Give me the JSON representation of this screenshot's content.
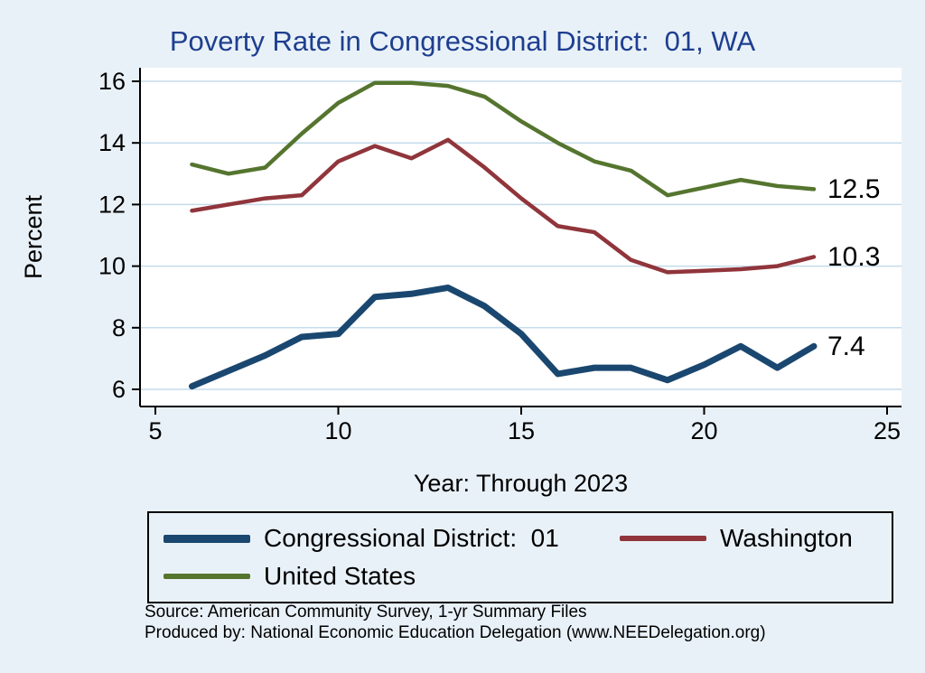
{
  "chart_data": {
    "type": "line",
    "title": "Poverty Rate in Congressional District:  01, WA",
    "xlabel": "Year: Through 2023",
    "ylabel": "Percent",
    "xlim": [
      5,
      25
    ],
    "ylim": [
      6,
      16
    ],
    "x_ticks": [
      5,
      10,
      15,
      20,
      25
    ],
    "y_ticks": [
      6,
      8,
      10,
      12,
      14,
      16
    ],
    "grid": "horizontal",
    "legend_position": "bottom",
    "x": [
      6,
      7,
      8,
      9,
      10,
      11,
      12,
      13,
      14,
      15,
      16,
      17,
      18,
      19,
      20,
      21,
      22,
      23
    ],
    "series": [
      {
        "name": "Congressional District:  01",
        "color": "#1a476f",
        "line_width": 7,
        "end_label": "7.4",
        "values": [
          6.1,
          6.6,
          7.1,
          7.7,
          7.8,
          9.0,
          9.1,
          9.3,
          8.7,
          7.8,
          6.5,
          6.7,
          6.7,
          6.3,
          6.8,
          7.4,
          6.7,
          7.4
        ]
      },
      {
        "name": "Washington",
        "color": "#90353b",
        "line_width": 4.5,
        "end_label": "10.3",
        "values": [
          11.8,
          12.0,
          12.2,
          12.3,
          13.4,
          13.9,
          13.5,
          14.1,
          13.2,
          12.2,
          11.3,
          11.1,
          10.2,
          9.8,
          9.85,
          9.9,
          10.0,
          10.3
        ]
      },
      {
        "name": "United States",
        "color": "#55752f",
        "line_width": 4.5,
        "end_label": "12.5",
        "values": [
          13.3,
          13.0,
          13.2,
          14.3,
          15.3,
          15.95,
          15.95,
          15.85,
          15.5,
          14.7,
          14.0,
          13.4,
          13.1,
          12.3,
          12.55,
          12.8,
          12.6,
          12.5
        ]
      }
    ],
    "notes": [
      "Source: American Community Survey, 1-yr Summary Files",
      "Produced by: National Economic Education Delegation (www.NEEDelegation.org)"
    ]
  },
  "colors": {
    "background": "#e9f1f8",
    "plot_bg": "#ffffff",
    "grid": "#c5dcec",
    "axis": "#000000",
    "title": "#1e3f8f",
    "text": "#000000"
  }
}
